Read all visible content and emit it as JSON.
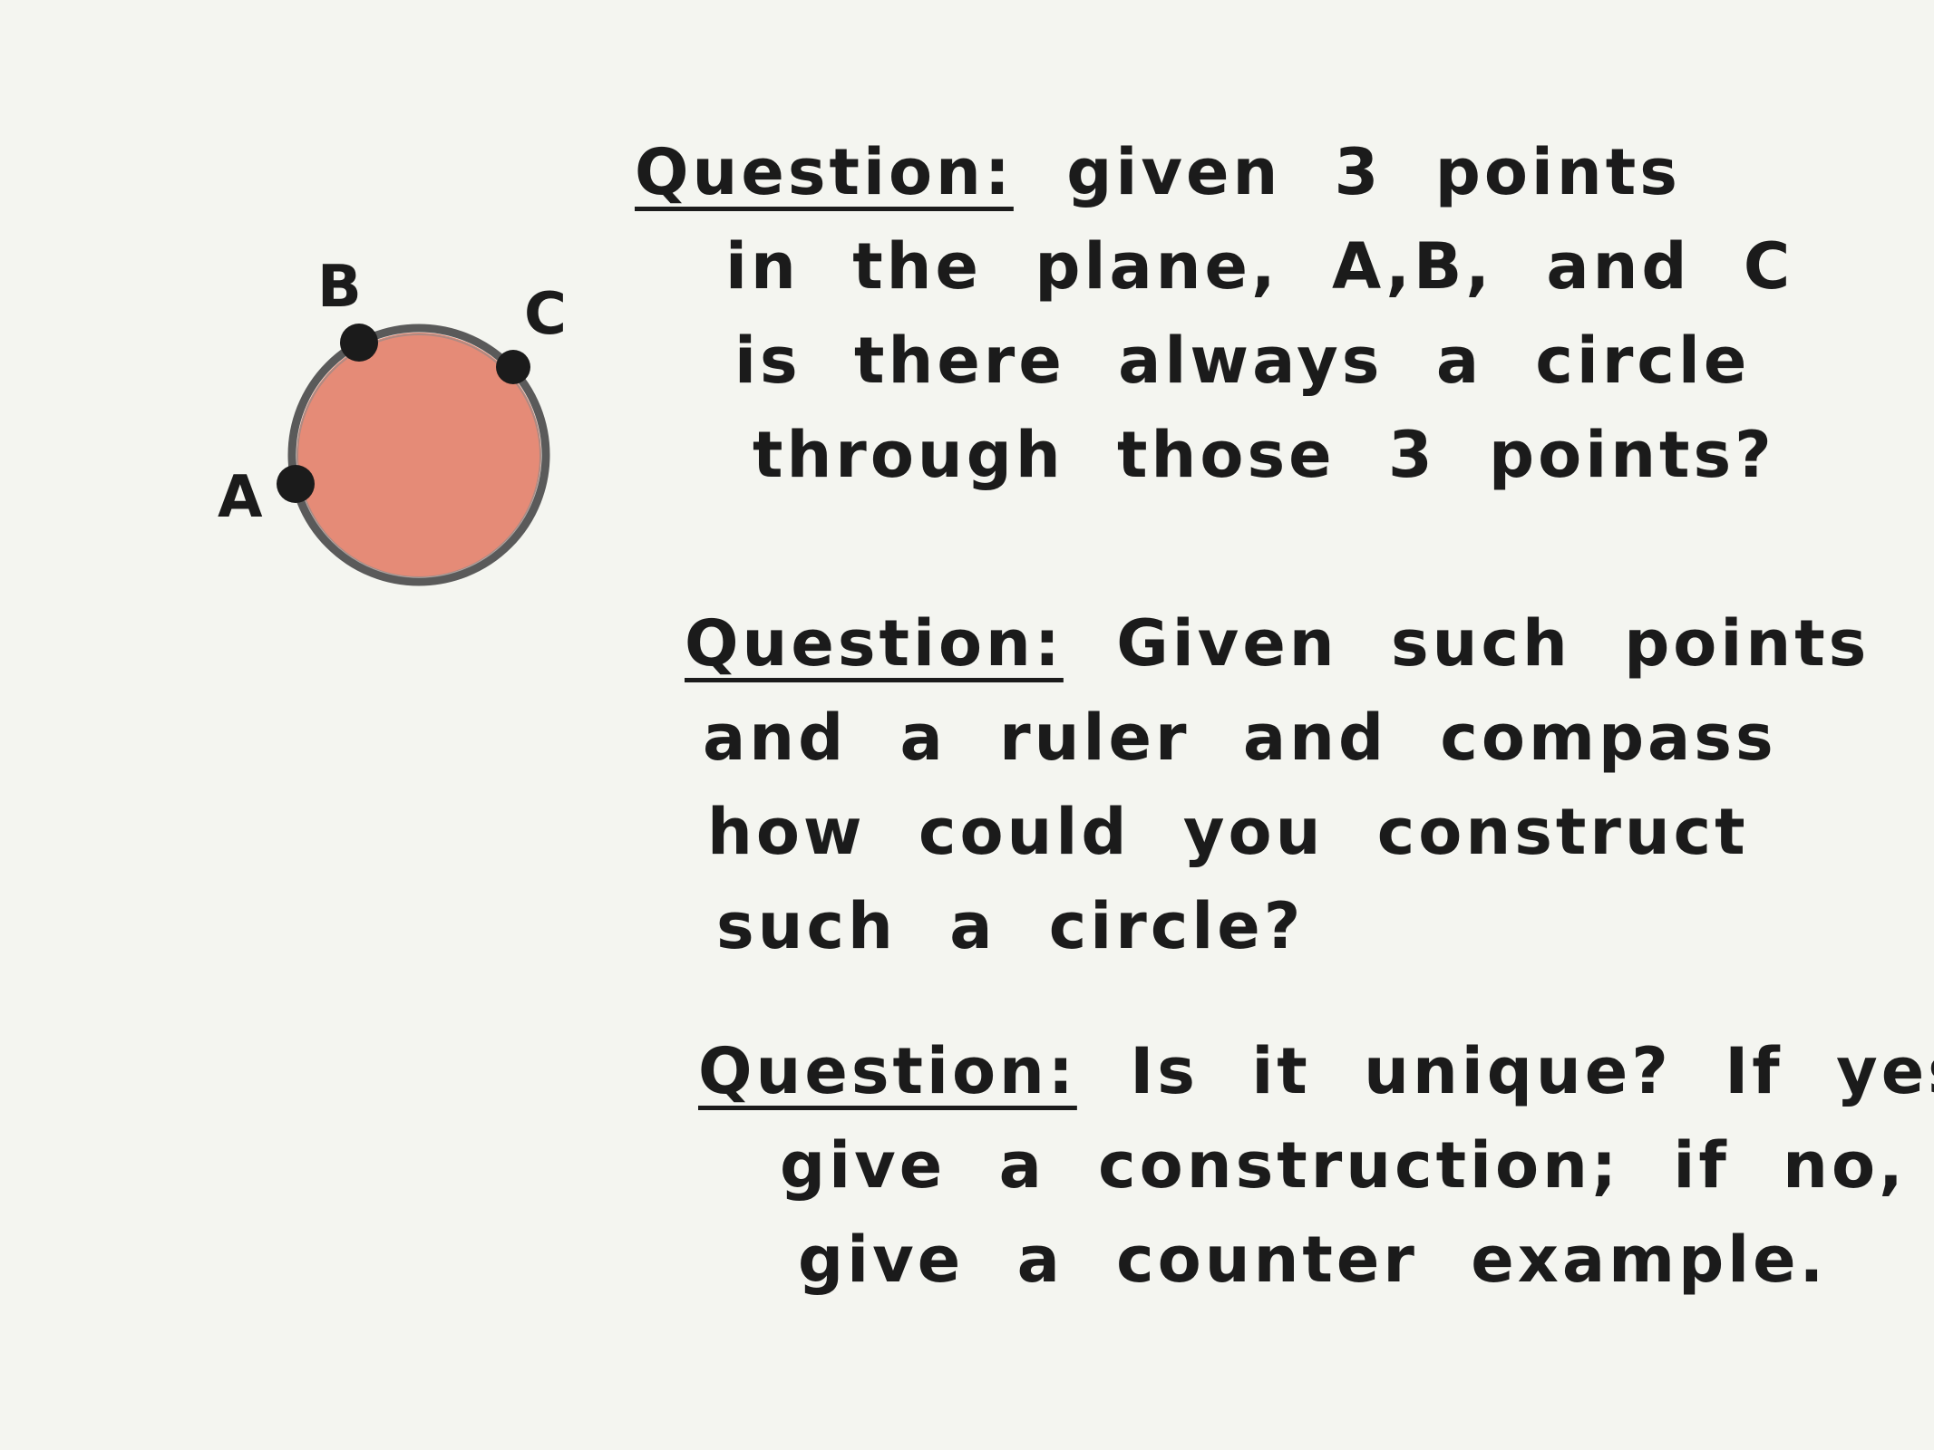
{
  "colors": {
    "background": "#f4f5f0",
    "ink": "#1b1b1b",
    "circle_fill": "#e58b77",
    "circle_outline": "#5a5a5a"
  },
  "diagram": {
    "points": [
      {
        "label": "A"
      },
      {
        "label": "B"
      },
      {
        "label": "C"
      }
    ]
  },
  "questions": [
    {
      "lead": "Question:",
      "lines": [
        "given 3 points",
        "in the plane, A,B, and C",
        "is there always a circle",
        "through those 3 points?"
      ]
    },
    {
      "lead": "Question:",
      "lines": [
        "Given such points",
        "and a ruler and compass",
        "how could you construct",
        "such a circle?"
      ]
    },
    {
      "lead": "Question:",
      "lines": [
        "Is it unique? If yes,",
        "give a construction; if no,",
        "give a counter example."
      ]
    }
  ]
}
